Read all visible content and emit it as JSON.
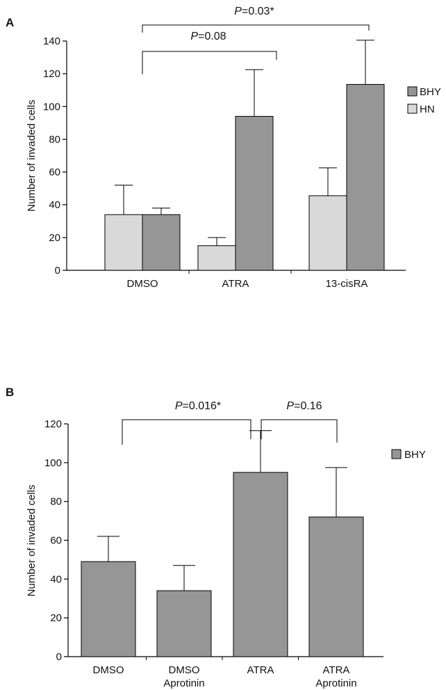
{
  "chart_data": [
    {
      "panel": "A",
      "type": "bar",
      "ylabel": "Number of invaded cells",
      "ylim": [
        0,
        140
      ],
      "yticks": [
        0,
        20,
        40,
        60,
        80,
        100,
        120,
        140
      ],
      "categories": [
        "DMSO",
        "ATRA",
        "13-cisRA"
      ],
      "series": [
        {
          "name": "HN",
          "color": "#d9d9d9",
          "values": [
            34,
            15,
            45.5
          ],
          "errors": [
            18,
            5,
            17
          ]
        },
        {
          "name": "BHY",
          "color": "#969696",
          "values": [
            34,
            94,
            113.5
          ],
          "errors": [
            4,
            28.5,
            27
          ]
        }
      ],
      "legend": {
        "position": "right",
        "entries": [
          "BHY",
          "HN"
        ]
      },
      "grid": false,
      "annotations": [
        {
          "prefix": "P",
          "text": "=0.08",
          "from": "DMSO",
          "to": "ATRA"
        },
        {
          "prefix": "P",
          "text": "=0.03*",
          "from": "DMSO",
          "to": "13-cisRA"
        }
      ]
    },
    {
      "panel": "B",
      "type": "bar",
      "ylabel": "Number of invaded cells",
      "ylim": [
        0,
        120
      ],
      "yticks": [
        0,
        20,
        40,
        60,
        80,
        100,
        120
      ],
      "categories": [
        [
          "DMSO"
        ],
        [
          "DMSO",
          "Aprotinin"
        ],
        [
          "ATRA"
        ],
        [
          "ATRA",
          "Aprotinin"
        ]
      ],
      "series": [
        {
          "name": "BHY",
          "color": "#969696",
          "values": [
            49,
            34,
            95,
            72
          ],
          "errors": [
            13,
            13,
            21.5,
            25.5
          ]
        }
      ],
      "legend": {
        "position": "right",
        "entries": [
          "BHY"
        ]
      },
      "grid": false,
      "annotations": [
        {
          "prefix": "P",
          "text": "=0.016*",
          "from": 0,
          "to": 2
        },
        {
          "prefix": "P",
          "text": "=0.16",
          "from": 2,
          "to": 3
        }
      ]
    }
  ]
}
